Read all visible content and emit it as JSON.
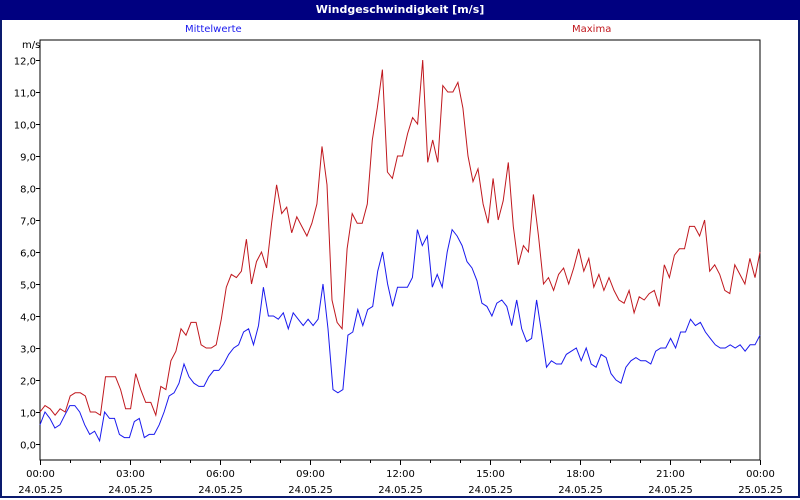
{
  "window": {
    "title": "Windgeschwindigkeit [m/s]",
    "frame_color": "#000080"
  },
  "legend": {
    "mean_label": "Mittelwerte",
    "max_label": "Maxima",
    "mean_color": "#1a1aee",
    "max_color": "#c0181e"
  },
  "chart_data": {
    "type": "line",
    "title": "Windgeschwindigkeit [m/s]",
    "xlabel": "",
    "ylabel": "m/s",
    "ylim": [
      -0.5,
      12.6
    ],
    "grid": true,
    "legend_position": "top",
    "x_interval_minutes": 10,
    "x_start": "24.05.25 00:00",
    "x_end": "25.05.25 00:00",
    "y_ticks": [
      "0,0",
      "1,0",
      "2,0",
      "3,0",
      "4,0",
      "5,0",
      "6,0",
      "7,0",
      "8,0",
      "9,0",
      "10,0",
      "11,0",
      "12,0"
    ],
    "x_ticks": [
      {
        "time": "00:00",
        "date": "24.05.25"
      },
      {
        "time": "03:00",
        "date": "24.05.25"
      },
      {
        "time": "06:00",
        "date": "24.05.25"
      },
      {
        "time": "09:00",
        "date": "24.05.25"
      },
      {
        "time": "12:00",
        "date": "24.05.25"
      },
      {
        "time": "15:00",
        "date": "24.05.25"
      },
      {
        "time": "18:00",
        "date": "24.05.25"
      },
      {
        "time": "21:00",
        "date": "24.05.25"
      },
      {
        "time": "00:00",
        "date": "25.05.25"
      }
    ],
    "series": [
      {
        "name": "Mittelwerte",
        "values": [
          0.6,
          1.0,
          0.8,
          0.5,
          0.6,
          0.9,
          1.2,
          1.2,
          1.0,
          0.6,
          0.3,
          0.4,
          0.1,
          1.0,
          0.8,
          0.8,
          0.3,
          0.2,
          0.2,
          0.7,
          0.8,
          0.2,
          0.3,
          0.3,
          0.6,
          1.0,
          1.5,
          1.6,
          1.9,
          2.5,
          2.1,
          1.9,
          1.8,
          1.8,
          2.1,
          2.3,
          2.3,
          2.5,
          2.8,
          3.0,
          3.1,
          3.5,
          3.6,
          3.1,
          3.7,
          4.9,
          4.0,
          4.0,
          3.9,
          4.1,
          3.6,
          4.1,
          3.9,
          3.7,
          3.9,
          3.7,
          3.9,
          5.0,
          3.6,
          1.7,
          1.6,
          1.7,
          3.4,
          3.5,
          4.2,
          3.7,
          4.2,
          4.3,
          5.4,
          6.0,
          5.0,
          4.3,
          4.9,
          4.9,
          4.9,
          5.2,
          6.7,
          6.2,
          6.5,
          4.9,
          5.3,
          4.9,
          6.0,
          6.7,
          6.5,
          6.2,
          5.7,
          5.5,
          5.1,
          4.4,
          4.3,
          4.0,
          4.4,
          4.5,
          4.3,
          3.7,
          4.5,
          3.6,
          3.2,
          3.3,
          4.5,
          3.5,
          2.4,
          2.6,
          2.5,
          2.5,
          2.8,
          2.9,
          3.0,
          2.6,
          3.0,
          2.5,
          2.4,
          2.8,
          2.7,
          2.2,
          2.0,
          1.9,
          2.4,
          2.6,
          2.7,
          2.6,
          2.6,
          2.5,
          2.9,
          3.0,
          3.0,
          3.3,
          3.0,
          3.5,
          3.5,
          3.9,
          3.7,
          3.8,
          3.5,
          3.3,
          3.1,
          3.0,
          3.0,
          3.1,
          3.0,
          3.1,
          2.9,
          3.1,
          3.1,
          3.4
        ]
      },
      {
        "name": "Maxima",
        "values": [
          1.0,
          1.2,
          1.1,
          0.9,
          1.1,
          1.0,
          1.5,
          1.6,
          1.6,
          1.5,
          1.0,
          1.0,
          0.9,
          2.1,
          2.1,
          2.1,
          1.7,
          1.1,
          1.1,
          2.2,
          1.7,
          1.3,
          1.3,
          0.9,
          1.8,
          1.7,
          2.6,
          2.9,
          3.6,
          3.4,
          3.8,
          3.8,
          3.1,
          3.0,
          3.0,
          3.1,
          3.9,
          4.9,
          5.3,
          5.2,
          5.4,
          6.4,
          5.0,
          5.7,
          6.0,
          5.5,
          6.9,
          8.1,
          7.2,
          7.4,
          6.6,
          7.1,
          6.8,
          6.5,
          6.9,
          7.5,
          9.3,
          8.1,
          4.5,
          3.8,
          3.6,
          6.1,
          7.2,
          6.9,
          6.9,
          7.5,
          9.5,
          10.5,
          11.7,
          8.5,
          8.3,
          9.0,
          9.0,
          9.7,
          10.2,
          10.0,
          12.0,
          8.8,
          9.5,
          8.8,
          11.2,
          11.0,
          11.0,
          11.3,
          10.5,
          9.0,
          8.2,
          8.6,
          7.5,
          6.9,
          8.3,
          7.0,
          7.6,
          8.8,
          6.8,
          5.6,
          6.2,
          6.0,
          7.8,
          6.5,
          5.0,
          5.2,
          4.8,
          5.3,
          5.5,
          5.0,
          5.5,
          6.1,
          5.4,
          5.8,
          4.9,
          5.3,
          4.8,
          5.2,
          4.8,
          4.5,
          4.4,
          4.8,
          4.1,
          4.6,
          4.5,
          4.7,
          4.8,
          4.3,
          5.6,
          5.2,
          5.9,
          6.1,
          6.1,
          6.8,
          6.8,
          6.5,
          7.0,
          5.4,
          5.6,
          5.3,
          4.8,
          4.7,
          5.6,
          5.3,
          5.0,
          5.8,
          5.2,
          6.0
        ]
      }
    ]
  }
}
